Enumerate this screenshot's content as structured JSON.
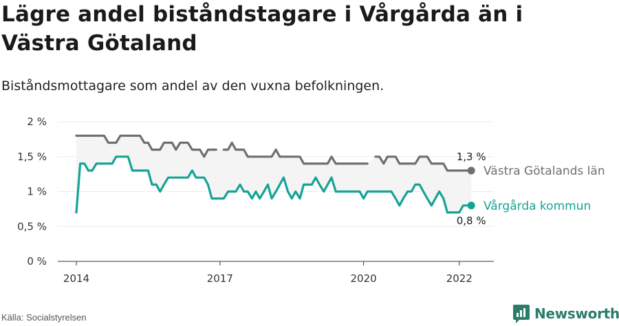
{
  "title": "Lägre andel biståndstagare i Vårgårda än i Västra Götaland",
  "subtitle": "Biståndsmottagare som andel av den vuxna befolkningen.",
  "source": "Källa: Socialstyrelsen",
  "brand": "Newsworthy",
  "colors": {
    "region": "#6e6e73",
    "kommun": "#14a394",
    "band": "#f4f4f4",
    "grid": "#ececec",
    "brand": "#2a7d6a"
  },
  "chart_data": {
    "type": "line",
    "x_ticks": [
      "2014",
      "2017",
      "2020",
      "2022"
    ],
    "x_tick_values": [
      2014.0,
      2017.0,
      2020.0,
      2022.0
    ],
    "y_ticks": [
      "0 %",
      "0,5 %",
      "1 %",
      "1,5 %",
      "2 %"
    ],
    "y_tick_values": [
      0,
      0.5,
      1,
      1.5,
      2
    ],
    "ylim": [
      0,
      2
    ],
    "xlim": [
      2014.0,
      2022.35
    ],
    "legend": "inline-right",
    "series": [
      {
        "name": "Västra Götalands län",
        "end_label": "1,3 %",
        "x": [
          2014.0,
          2014.08,
          2014.17,
          2014.25,
          2014.33,
          2014.42,
          2014.5,
          2014.58,
          2014.67,
          2014.75,
          2014.83,
          2014.92,
          2015.0,
          2015.08,
          2015.17,
          2015.25,
          2015.33,
          2015.42,
          2015.5,
          2015.58,
          2015.67,
          2015.75,
          2015.83,
          2015.92,
          2016.0,
          2016.08,
          2016.17,
          2016.25,
          2016.33,
          2016.42,
          2016.5,
          2016.58,
          2016.67,
          2016.75,
          2016.83,
          2016.92,
          null,
          2017.08,
          2017.17,
          2017.25,
          2017.33,
          2017.42,
          2017.5,
          2017.58,
          2017.67,
          2017.75,
          2017.83,
          2017.92,
          2018.0,
          2018.08,
          2018.17,
          2018.25,
          2018.33,
          2018.42,
          2018.5,
          2018.58,
          2018.67,
          2018.75,
          2018.83,
          2018.92,
          2019.0,
          2019.08,
          2019.17,
          2019.25,
          2019.33,
          2019.42,
          2019.5,
          2019.58,
          2019.67,
          2019.75,
          2019.83,
          2019.92,
          2020.0,
          2020.08,
          null,
          2020.25,
          2020.33,
          2020.42,
          2020.5,
          2020.58,
          2020.67,
          2020.75,
          2020.83,
          2020.92,
          2021.0,
          2021.08,
          2021.17,
          2021.25,
          2021.33,
          2021.42,
          2021.5,
          2021.58,
          2021.67,
          2021.75,
          2021.83,
          2021.92,
          2022.0,
          2022.08,
          2022.17,
          2022.25
        ],
        "values": [
          1.8,
          1.8,
          1.8,
          1.8,
          1.8,
          1.8,
          1.8,
          1.8,
          1.7,
          1.7,
          1.7,
          1.8,
          1.8,
          1.8,
          1.8,
          1.8,
          1.8,
          1.7,
          1.7,
          1.6,
          1.6,
          1.6,
          1.7,
          1.7,
          1.7,
          1.6,
          1.7,
          1.7,
          1.7,
          1.6,
          1.6,
          1.6,
          1.5,
          1.6,
          1.6,
          1.6,
          null,
          1.6,
          1.6,
          1.7,
          1.6,
          1.6,
          1.6,
          1.5,
          1.5,
          1.5,
          1.5,
          1.5,
          1.5,
          1.5,
          1.6,
          1.5,
          1.5,
          1.5,
          1.5,
          1.5,
          1.5,
          1.4,
          1.4,
          1.4,
          1.4,
          1.4,
          1.4,
          1.4,
          1.5,
          1.4,
          1.4,
          1.4,
          1.4,
          1.4,
          1.4,
          1.4,
          1.4,
          1.4,
          null,
          1.5,
          1.5,
          1.4,
          1.5,
          1.5,
          1.5,
          1.4,
          1.4,
          1.4,
          1.4,
          1.4,
          1.5,
          1.5,
          1.5,
          1.4,
          1.4,
          1.4,
          1.4,
          1.3,
          1.3,
          1.3,
          1.3,
          1.3,
          1.3,
          1.3
        ]
      },
      {
        "name": "Vårgårda kommun",
        "end_label": "0,8 %",
        "x": [
          2014.0,
          2014.08,
          2014.17,
          2014.25,
          2014.33,
          2014.42,
          2014.5,
          2014.58,
          2014.67,
          2014.75,
          2014.83,
          2014.92,
          2015.0,
          2015.08,
          2015.17,
          2015.25,
          2015.33,
          2015.42,
          2015.5,
          2015.58,
          2015.67,
          2015.75,
          2015.83,
          2015.92,
          2016.0,
          2016.08,
          2016.17,
          2016.25,
          2016.33,
          2016.42,
          2016.5,
          2016.58,
          2016.67,
          2016.75,
          2016.83,
          2016.92,
          2017.0,
          2017.08,
          2017.17,
          2017.25,
          2017.33,
          2017.42,
          2017.5,
          2017.58,
          2017.67,
          2017.75,
          2017.83,
          2017.92,
          2018.0,
          2018.08,
          2018.17,
          2018.25,
          2018.33,
          2018.42,
          2018.5,
          2018.58,
          2018.67,
          2018.75,
          2018.83,
          2018.92,
          2019.0,
          2019.08,
          2019.17,
          2019.25,
          2019.33,
          2019.42,
          2019.5,
          2019.58,
          2019.67,
          2019.75,
          2019.83,
          2019.92,
          2020.0,
          2020.08,
          2020.17,
          2020.25,
          2020.33,
          2020.42,
          2020.5,
          2020.58,
          2020.67,
          2020.75,
          2020.83,
          2020.92,
          2021.0,
          2021.08,
          2021.17,
          2021.25,
          2021.33,
          2021.42,
          2021.5,
          2021.58,
          2021.67,
          2021.75,
          2021.83,
          2021.92,
          2022.0,
          2022.08,
          2022.17,
          2022.25
        ],
        "values": [
          0.7,
          1.4,
          1.4,
          1.3,
          1.3,
          1.4,
          1.4,
          1.4,
          1.4,
          1.4,
          1.5,
          1.5,
          1.5,
          1.5,
          1.3,
          1.3,
          1.3,
          1.3,
          1.3,
          1.1,
          1.1,
          1.0,
          1.1,
          1.2,
          1.2,
          1.2,
          1.2,
          1.2,
          1.2,
          1.3,
          1.2,
          1.2,
          1.2,
          1.1,
          0.9,
          0.9,
          0.9,
          0.9,
          1.0,
          1.0,
          1.0,
          1.1,
          1.0,
          1.0,
          0.9,
          1.0,
          0.9,
          1.0,
          1.1,
          0.9,
          1.0,
          1.1,
          1.2,
          1.0,
          0.9,
          1.0,
          0.9,
          1.1,
          1.1,
          1.1,
          1.2,
          1.1,
          1.0,
          1.1,
          1.2,
          1.0,
          1.0,
          1.0,
          1.0,
          1.0,
          1.0,
          1.0,
          0.9,
          1.0,
          1.0,
          1.0,
          1.0,
          1.0,
          1.0,
          1.0,
          0.9,
          0.8,
          0.9,
          1.0,
          1.0,
          1.1,
          1.1,
          1.0,
          0.9,
          0.8,
          0.9,
          1.0,
          0.9,
          0.7,
          0.7,
          0.7,
          0.7,
          0.8,
          0.8,
          0.8
        ]
      }
    ]
  }
}
